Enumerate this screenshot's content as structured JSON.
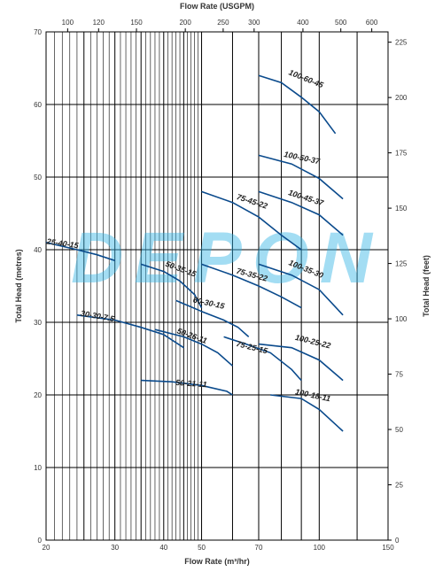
{
  "watermark": "DEPON",
  "chart_data": {
    "type": "line",
    "xlabel": "Flow Rate (m³/hr)",
    "ylabel": "Total Head (metres)",
    "x2label": "Flow Rate (USGPM)",
    "y2label": "Total Head (feet)",
    "x_scale": "log",
    "xlim": [
      20,
      150
    ],
    "ylim": [
      0,
      70
    ],
    "x_ticks": [
      20,
      30,
      40,
      50,
      70,
      100,
      150
    ],
    "x_minor": [
      25,
      35,
      45,
      60,
      80,
      90,
      125
    ],
    "y_ticks": [
      0,
      10,
      20,
      30,
      40,
      50,
      60,
      70
    ],
    "x2_ticks": [
      100,
      120,
      150,
      200,
      250,
      300,
      400,
      500,
      600
    ],
    "y2_ticks": [
      0,
      25,
      50,
      75,
      100,
      125,
      150,
      175,
      200,
      225
    ],
    "grid": true,
    "series": [
      {
        "name": "25-40-15",
        "x": [
          20,
          24,
          27,
          30
        ],
        "y": [
          41,
          40,
          39.3,
          38.5
        ]
      },
      {
        "name": "30-30-7.5",
        "x": [
          24,
          30,
          35,
          40,
          45
        ],
        "y": [
          31,
          30.3,
          29.3,
          28.3,
          26.5
        ]
      },
      {
        "name": "50-35-15",
        "x": [
          35,
          40,
          44,
          48,
          50
        ],
        "y": [
          38,
          37,
          35.7,
          33.8,
          32
        ]
      },
      {
        "name": "60-30-15",
        "x": [
          43,
          50,
          57,
          62,
          66
        ],
        "y": [
          33,
          31.5,
          30.3,
          29.3,
          28
        ]
      },
      {
        "name": "50-26-11",
        "x": [
          38,
          45,
          50,
          55,
          60
        ],
        "y": [
          29,
          28,
          27,
          25.8,
          24
        ]
      },
      {
        "name": "50-21-11",
        "x": [
          35,
          42,
          50,
          58,
          60
        ],
        "y": [
          22,
          21.8,
          21.3,
          20.5,
          20
        ]
      },
      {
        "name": "75-45-22",
        "x": [
          50,
          60,
          70,
          80,
          90
        ],
        "y": [
          48,
          46.5,
          44.5,
          42,
          40
        ]
      },
      {
        "name": "75-35-22",
        "x": [
          50,
          60,
          70,
          80,
          90
        ],
        "y": [
          38,
          36.5,
          35,
          33.5,
          32
        ]
      },
      {
        "name": "75-25-15",
        "x": [
          57,
          65,
          75,
          85,
          90
        ],
        "y": [
          28,
          27,
          25.8,
          23.5,
          22
        ]
      },
      {
        "name": "100-60-45",
        "x": [
          70,
          80,
          90,
          100,
          110
        ],
        "y": [
          64,
          63,
          61,
          59,
          56
        ]
      },
      {
        "name": "100-50-37",
        "x": [
          70,
          85,
          100,
          115
        ],
        "y": [
          53,
          51.8,
          49.8,
          47
        ]
      },
      {
        "name": "100-45-37",
        "x": [
          70,
          85,
          100,
          115
        ],
        "y": [
          48,
          46.5,
          44.8,
          42
        ]
      },
      {
        "name": "100-35-30",
        "x": [
          70,
          85,
          100,
          115
        ],
        "y": [
          38,
          36.5,
          34.5,
          31
        ]
      },
      {
        "name": "100-25-22",
        "x": [
          70,
          85,
          100,
          115
        ],
        "y": [
          27,
          26.5,
          24.8,
          22
        ]
      },
      {
        "name": "100-18-11",
        "x": [
          75,
          90,
          100,
          115
        ],
        "y": [
          20,
          19.5,
          18,
          15
        ]
      }
    ],
    "labels": [
      {
        "text": "25-40-15",
        "x": 22,
        "y": 40.5,
        "angle": 8
      },
      {
        "text": "30-30-7.5",
        "x": 27,
        "y": 30.5,
        "angle": 10
      },
      {
        "text": "50-35-15",
        "x": 44,
        "y": 37,
        "angle": 20
      },
      {
        "text": "60-30-15",
        "x": 52,
        "y": 32.3,
        "angle": 12
      },
      {
        "text": "50-26-11",
        "x": 47,
        "y": 27.8,
        "angle": 20
      },
      {
        "text": "50-21-11",
        "x": 47,
        "y": 21.2,
        "angle": 4
      },
      {
        "text": "75-45-22",
        "x": 67,
        "y": 46.3,
        "angle": 18
      },
      {
        "text": "75-35-22",
        "x": 67,
        "y": 36.2,
        "angle": 15
      },
      {
        "text": "75-25-15",
        "x": 67,
        "y": 26.2,
        "angle": 14
      },
      {
        "text": "100-60-45",
        "x": 92,
        "y": 63.2,
        "angle": 22
      },
      {
        "text": "100-50-37",
        "x": 90,
        "y": 52.3,
        "angle": 12
      },
      {
        "text": "100-45-37",
        "x": 92,
        "y": 46.8,
        "angle": 18
      },
      {
        "text": "100-35-30",
        "x": 92,
        "y": 37,
        "angle": 22
      },
      {
        "text": "100-25-22",
        "x": 96,
        "y": 27,
        "angle": 14
      },
      {
        "text": "100-18-11",
        "x": 96,
        "y": 19.6,
        "angle": 12
      }
    ],
    "line_color": "#0a4a8c"
  }
}
